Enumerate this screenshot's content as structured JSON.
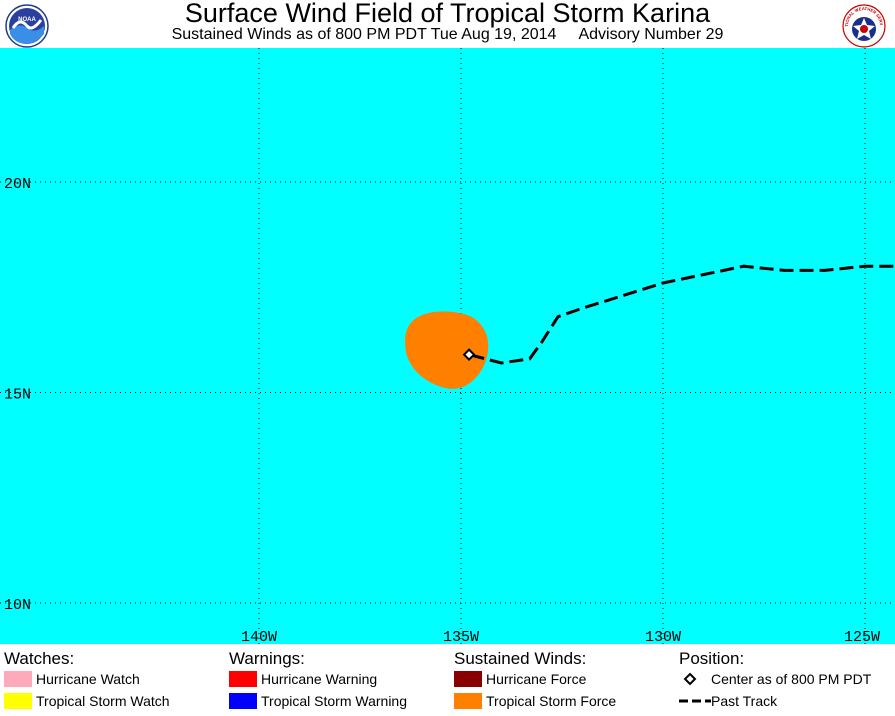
{
  "header": {
    "title": "Surface Wind Field of Tropical Storm Karina",
    "subtitle_left": "Sustained Winds as of 800 PM PDT Tue Aug 19, 2014",
    "subtitle_right": "Advisory Number 29",
    "logo_left_text": "NOAA",
    "logo_right_text": "NATIONAL WEATHER SERVICE"
  },
  "map": {
    "ocean_color": "#00ffff",
    "grid_color": "#000000",
    "lat_labels": [
      "20N",
      "15N",
      "10N"
    ],
    "lon_labels": [
      "140W",
      "135W",
      "130W",
      "125W"
    ],
    "storm": {
      "center_lat": 15.9,
      "center_lon": -134.8,
      "wind_field_color": "#ff8000"
    },
    "past_track": [
      [
        -124.3,
        18.0
      ],
      [
        -125.0,
        18.0
      ],
      [
        -126.0,
        17.9
      ],
      [
        -127.0,
        17.9
      ],
      [
        -128.0,
        18.0
      ],
      [
        -129.0,
        17.8
      ],
      [
        -130.0,
        17.6
      ],
      [
        -131.0,
        17.3
      ],
      [
        -132.0,
        17.0
      ],
      [
        -132.6,
        16.8
      ],
      [
        -133.0,
        16.2
      ],
      [
        -133.3,
        15.8
      ],
      [
        -134.0,
        15.7
      ],
      [
        -134.8,
        15.9
      ]
    ]
  },
  "legend": {
    "watches": {
      "heading": "Watches:",
      "items": [
        {
          "label": "Hurricane Watch",
          "color": "#ffaabb"
        },
        {
          "label": "Tropical Storm Watch",
          "color": "#ffff00"
        }
      ]
    },
    "warnings": {
      "heading": "Warnings:",
      "items": [
        {
          "label": "Hurricane Warning",
          "color": "#ff0000"
        },
        {
          "label": "Tropical Storm Warning",
          "color": "#0000ff"
        }
      ]
    },
    "winds": {
      "heading": "Sustained Winds:",
      "items": [
        {
          "label": "Hurricane Force",
          "color": "#880000"
        },
        {
          "label": "Tropical Storm Force",
          "color": "#ff8000"
        }
      ]
    },
    "position": {
      "heading": "Position:",
      "items": [
        {
          "label": "Center as of 800 PM PDT",
          "icon": "diamond-icon"
        },
        {
          "label": "Past Track",
          "icon": "dashed-line-icon"
        }
      ]
    }
  }
}
